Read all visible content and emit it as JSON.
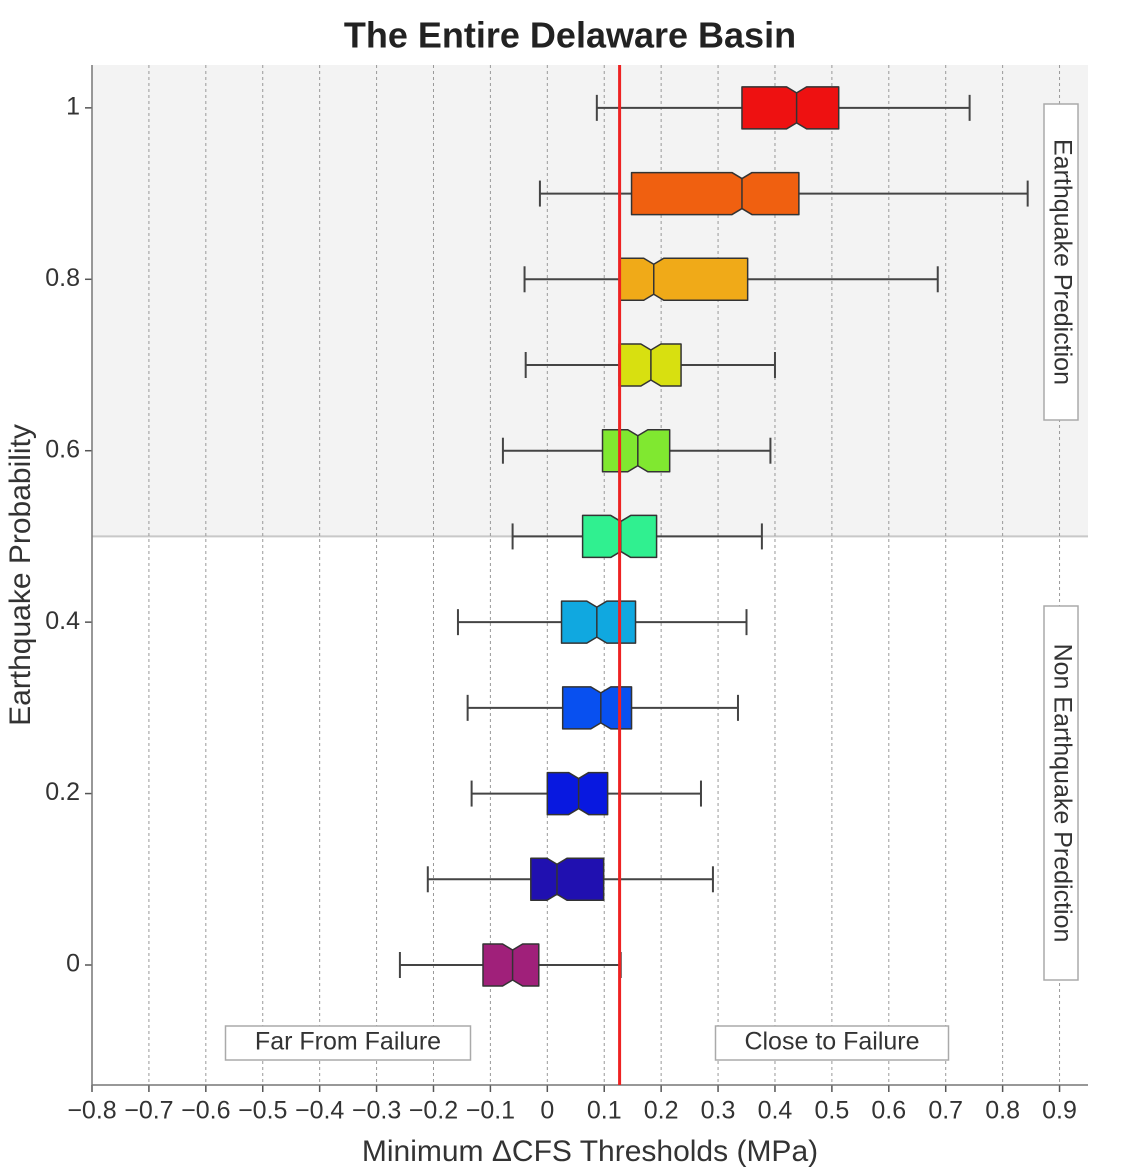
{
  "chart_data": {
    "type": "boxplot",
    "orientation": "horizontal",
    "title": "The Entire Delaware Basin",
    "x_label": "Minimum ΔCFS Thresholds (MPa)",
    "y_label": "Earthquake Probability",
    "xlim": [
      -0.8,
      0.95
    ],
    "ylim": [
      -0.14,
      1.05
    ],
    "xticks": [
      {
        "value": -0.8,
        "label": "−0.8"
      },
      {
        "value": -0.7,
        "label": "−0.7"
      },
      {
        "value": -0.6,
        "label": "−0.6"
      },
      {
        "value": -0.5,
        "label": "−0.5"
      },
      {
        "value": -0.4,
        "label": "−0.4"
      },
      {
        "value": -0.3,
        "label": "−0.3"
      },
      {
        "value": -0.2,
        "label": "−0.2"
      },
      {
        "value": -0.1,
        "label": "−0.1"
      },
      0,
      0.1,
      0.2,
      0.3,
      0.4,
      0.5,
      0.6,
      0.7,
      0.8,
      0.9
    ],
    "yticks": [
      0,
      0.2,
      0.4,
      0.6,
      0.8,
      1
    ],
    "grid": "x",
    "threshold_line": 0.127,
    "threshold_color": "#ee2222",
    "shaded_region_above": 0.5,
    "annotations": [
      "Earthquake Prediction",
      "Non Earthquake Prediction",
      "Far From Failure",
      "Close to Failure"
    ],
    "boxes": [
      {
        "position": 1.0,
        "whislo": 0.087,
        "q1": 0.342,
        "med": 0.438,
        "q3": 0.512,
        "whishi": 0.742,
        "color": "#ee1111"
      },
      {
        "position": 0.9,
        "whislo": -0.013,
        "q1": 0.148,
        "med": 0.342,
        "q3": 0.442,
        "whishi": 0.844,
        "color": "#f06010"
      },
      {
        "position": 0.8,
        "whislo": -0.04,
        "q1": 0.127,
        "med": 0.187,
        "q3": 0.352,
        "whishi": 0.686,
        "color": "#f0aa18"
      },
      {
        "position": 0.7,
        "whislo": -0.038,
        "q1": 0.126,
        "med": 0.182,
        "q3": 0.235,
        "whishi": 0.4,
        "color": "#d8e010"
      },
      {
        "position": 0.6,
        "whislo": -0.078,
        "q1": 0.097,
        "med": 0.159,
        "q3": 0.215,
        "whishi": 0.392,
        "color": "#80e830"
      },
      {
        "position": 0.5,
        "whislo": -0.061,
        "q1": 0.062,
        "med": 0.129,
        "q3": 0.192,
        "whishi": 0.377,
        "color": "#30f090"
      },
      {
        "position": 0.4,
        "whislo": -0.157,
        "q1": 0.025,
        "med": 0.087,
        "q3": 0.155,
        "whishi": 0.35,
        "color": "#10a8e0"
      },
      {
        "position": 0.3,
        "whislo": -0.14,
        "q1": 0.027,
        "med": 0.094,
        "q3": 0.148,
        "whishi": 0.335,
        "color": "#0850f0"
      },
      {
        "position": 0.2,
        "whislo": -0.133,
        "q1": 0.0,
        "med": 0.055,
        "q3": 0.106,
        "whishi": 0.27,
        "color": "#0818e0"
      },
      {
        "position": 0.1,
        "whislo": -0.21,
        "q1": -0.029,
        "med": 0.017,
        "q3": 0.099,
        "whishi": 0.291,
        "color": "#2010b0"
      },
      {
        "position": 0.0,
        "whislo": -0.259,
        "q1": -0.113,
        "med": -0.061,
        "q3": -0.015,
        "whishi": 0.129,
        "color": "#a0207a"
      }
    ]
  }
}
